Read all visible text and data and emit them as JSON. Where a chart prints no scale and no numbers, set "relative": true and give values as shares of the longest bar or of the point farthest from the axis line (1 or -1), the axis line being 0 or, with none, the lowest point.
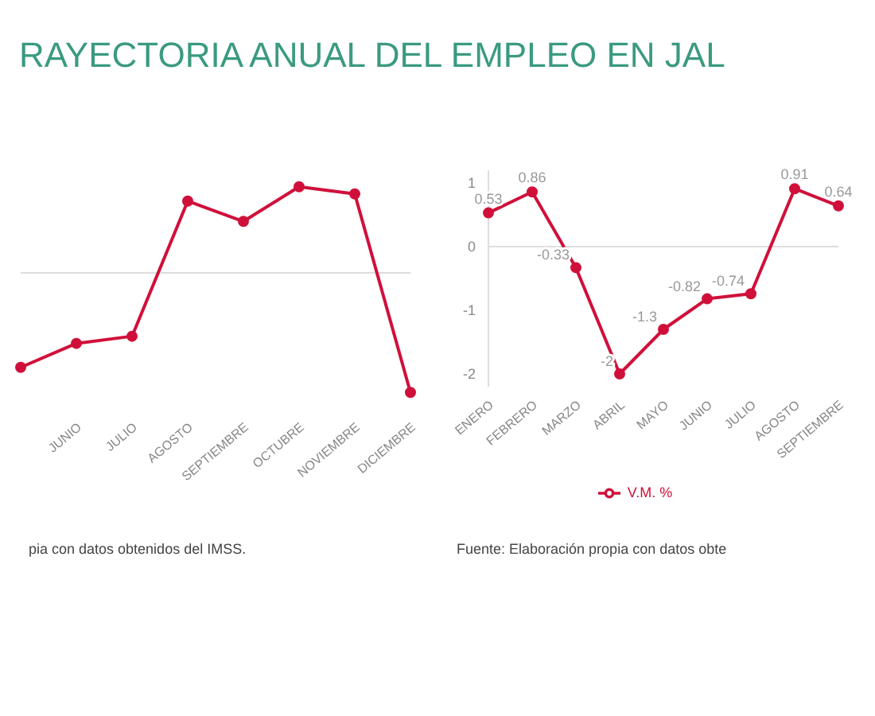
{
  "chart_data": [
    {
      "type": "line",
      "title": "RAYECTORIA ANUAL DEL EMPLEO EN JAL",
      "relative": true,
      "categories": [
        null,
        "JUNIO",
        "JULIO",
        "AGOSTO",
        "SEPTIEMBRE",
        "OCTUBRE",
        "NOVIEMBRE",
        "DICIEMBRE"
      ],
      "series": [
        {
          "color": "#d0103a",
          "values": [
            -0.79,
            -0.59,
            -0.53,
            0.6,
            0.43,
            0.72,
            0.66,
            -1
          ]
        }
      ],
      "marker": "circle",
      "legend": false,
      "grid": false,
      "annotations": [
        "pia con datos obtenidos del IMSS."
      ]
    },
    {
      "type": "line",
      "categories": [
        "ENERO",
        "FEBRERO",
        "MARZO",
        "ABRIL",
        "MAYO",
        "JUNIO",
        "JULIO",
        "AGOSTO",
        "SEPTIEMBRE"
      ],
      "series": [
        {
          "name": "V.M. %",
          "color": "#d0103a",
          "values": [
            0.53,
            0.86,
            -0.33,
            -2.0,
            -1.3,
            -0.82,
            -0.74,
            0.91,
            0.64
          ]
        }
      ],
      "ylim": [
        -2.2,
        1.2
      ],
      "yticks": [
        -2,
        -1,
        0,
        1
      ],
      "ref_lines": [
        {
          "axis": "y",
          "value": 0
        }
      ],
      "marker": "circle",
      "legend": "bottom",
      "grid": false,
      "data_labels": true,
      "annotations": [
        "Fuente: Elaboración propia con datos obte"
      ]
    }
  ]
}
